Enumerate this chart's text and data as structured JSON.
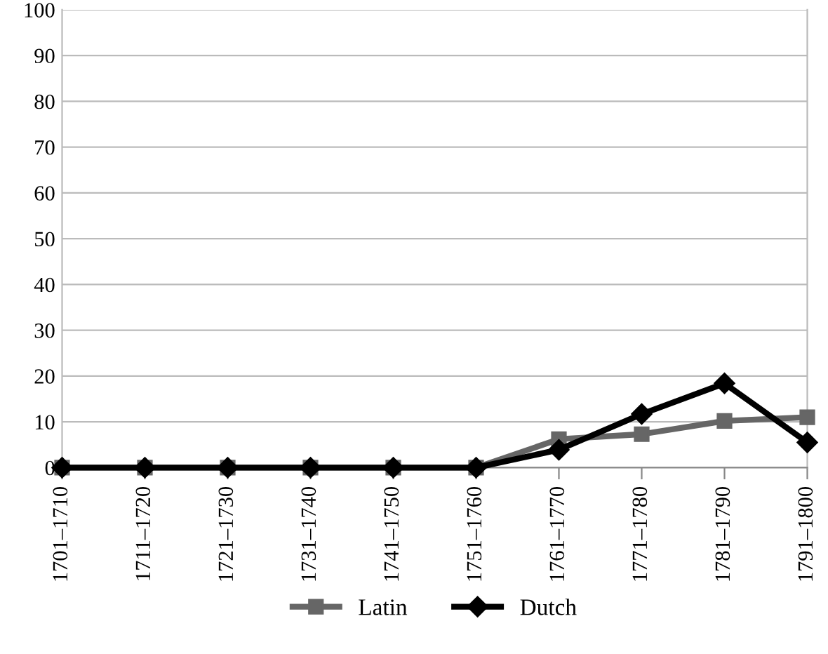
{
  "chart_data": {
    "type": "line",
    "categories": [
      "1701–1710",
      "1711–1720",
      "1721–1730",
      "1731–1740",
      "1741–1750",
      "1751–1760",
      "1761–1770",
      "1771–1780",
      "1781–1790",
      "1791–1800"
    ],
    "series": [
      {
        "name": "Latin",
        "color": "#666666",
        "marker": "square",
        "values": [
          0,
          0,
          0,
          0,
          0,
          0,
          6.2,
          7.3,
          10.2,
          11
        ]
      },
      {
        "name": "Dutch",
        "color": "#000000",
        "marker": "diamond",
        "values": [
          0,
          0,
          0,
          0,
          0,
          0,
          3.9,
          11.7,
          18.4,
          5.5
        ]
      }
    ],
    "ylim": [
      0,
      100
    ],
    "yticks": [
      0,
      10,
      20,
      30,
      40,
      50,
      60,
      70,
      80,
      90,
      100
    ],
    "grid": "y",
    "legend": "bottom",
    "line_style": "solid"
  }
}
